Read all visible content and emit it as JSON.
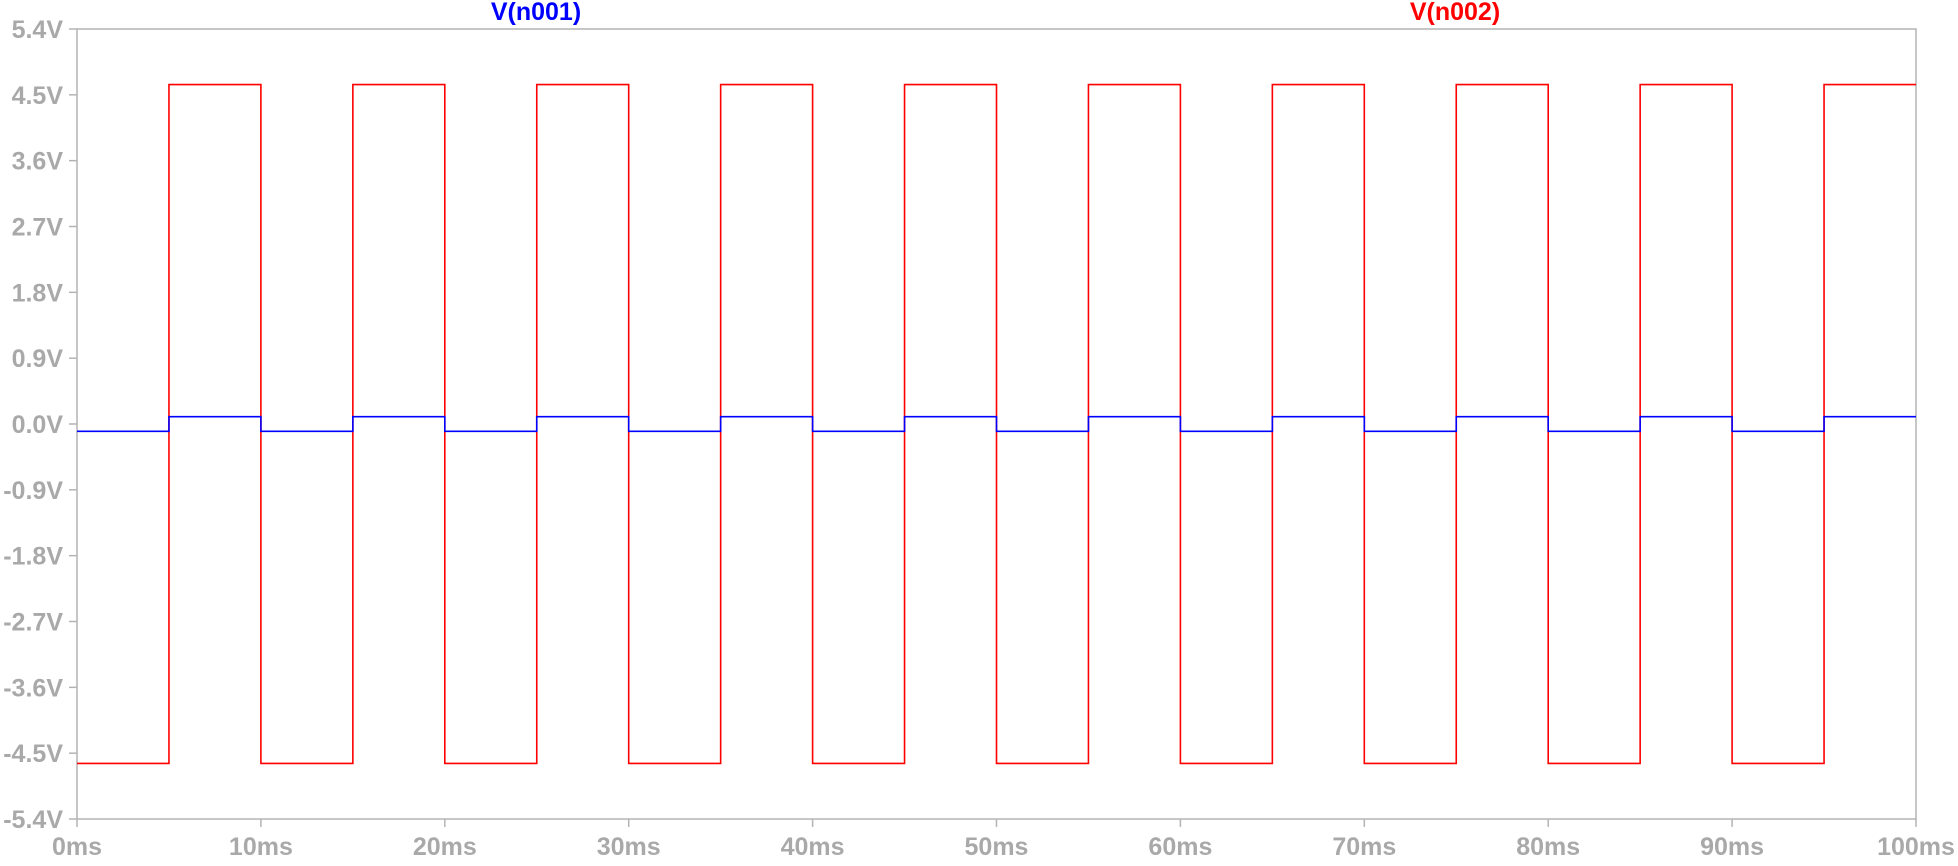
{
  "chart_data": {
    "type": "line",
    "title": "",
    "xlabel": "",
    "ylabel": "",
    "x_unit": "ms",
    "y_unit": "V",
    "xlim": [
      0,
      100
    ],
    "ylim": [
      -5.4,
      5.4
    ],
    "x_ticks": [
      "0ms",
      "10ms",
      "20ms",
      "30ms",
      "40ms",
      "50ms",
      "60ms",
      "70ms",
      "80ms",
      "90ms",
      "100ms"
    ],
    "y_ticks": [
      "5.4V",
      "4.5V",
      "3.6V",
      "2.7V",
      "1.8V",
      "0.9V",
      "0.0V",
      "-0.9V",
      "-1.8V",
      "-2.7V",
      "-3.6V",
      "-4.5V",
      "-5.4V"
    ],
    "grid": false,
    "legend_position": "top",
    "series": [
      {
        "name": "V(n001)",
        "color": "#0000ff",
        "shape": "square-wave",
        "period_ms": 10,
        "first_transition_ms": 5,
        "starts_at": "low",
        "high_v": 0.1,
        "low_v": -0.1
      },
      {
        "name": "V(n002)",
        "color": "#ff0000",
        "shape": "square-wave",
        "period_ms": 10,
        "first_transition_ms": 5,
        "starts_at": "low",
        "high_v": 4.64,
        "low_v": -4.64
      }
    ]
  }
}
